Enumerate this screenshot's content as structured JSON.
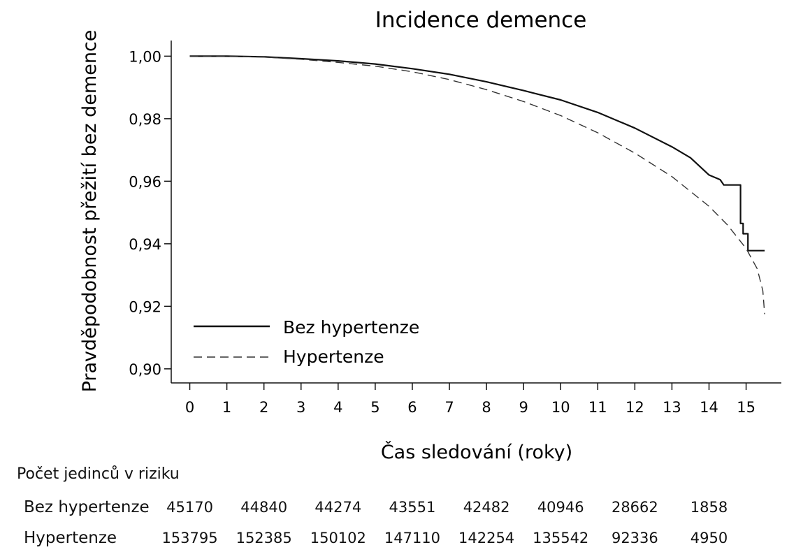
{
  "chart_data": {
    "type": "line",
    "title": "Incidence demence",
    "xlabel": "Čas sledování (roky)",
    "ylabel": "Pravděpodobnost přežití bez demence",
    "xlim": [
      -0.5,
      15.95
    ],
    "ylim": [
      0.8955,
      1.005
    ],
    "x_ticks": [
      "0",
      "1",
      "2",
      "3",
      "4",
      "5",
      "6",
      "7",
      "8",
      "9",
      "10",
      "11",
      "12",
      "13",
      "14",
      "15"
    ],
    "y_ticks": [
      {
        "value": 1.0,
        "label": "1,00"
      },
      {
        "value": 0.98,
        "label": "0,98"
      },
      {
        "value": 0.96,
        "label": "0,96"
      },
      {
        "value": 0.94,
        "label": "0,94"
      },
      {
        "value": 0.92,
        "label": "0,92"
      },
      {
        "value": 0.9,
        "label": "0,90"
      }
    ],
    "grid": false,
    "legend_position": "bottom-left",
    "series": [
      {
        "name": "Bez hypertenze",
        "style": "solid",
        "color": "#111111",
        "points": [
          [
            0,
            1.0
          ],
          [
            1,
            1.0
          ],
          [
            2,
            0.9998
          ],
          [
            3,
            0.9992
          ],
          [
            4,
            0.9985
          ],
          [
            5,
            0.9975
          ],
          [
            6,
            0.996
          ],
          [
            7,
            0.9942
          ],
          [
            8,
            0.9918
          ],
          [
            9,
            0.989
          ],
          [
            10,
            0.986
          ],
          [
            11,
            0.982
          ],
          [
            12,
            0.977
          ],
          [
            13,
            0.971
          ],
          [
            13.5,
            0.9675
          ],
          [
            14,
            0.962
          ],
          [
            14.3,
            0.9605
          ],
          [
            14.4,
            0.9588
          ],
          [
            14.85,
            0.9588
          ],
          [
            14.85,
            0.9465
          ],
          [
            14.92,
            0.9465
          ],
          [
            14.92,
            0.9432
          ],
          [
            15.05,
            0.9432
          ],
          [
            15.05,
            0.9378
          ],
          [
            15.5,
            0.9378
          ]
        ]
      },
      {
        "name": "Hypertenze",
        "style": "dashed",
        "color": "#333333",
        "points": [
          [
            0,
            1.0
          ],
          [
            1,
            1.0
          ],
          [
            2,
            0.9997
          ],
          [
            3,
            0.999
          ],
          [
            4,
            0.998
          ],
          [
            5,
            0.9968
          ],
          [
            6,
            0.995
          ],
          [
            7,
            0.9925
          ],
          [
            8,
            0.9893
          ],
          [
            9,
            0.9855
          ],
          [
            10,
            0.981
          ],
          [
            11,
            0.9755
          ],
          [
            12,
            0.969
          ],
          [
            13,
            0.9615
          ],
          [
            14,
            0.952
          ],
          [
            14.5,
            0.946
          ],
          [
            15,
            0.9385
          ],
          [
            15.3,
            0.932
          ],
          [
            15.45,
            0.925
          ],
          [
            15.5,
            0.9175
          ]
        ]
      }
    ]
  },
  "risk_table": {
    "title": "Počet jedinců v riziku",
    "years": [
      0,
      2,
      4,
      6,
      8,
      10,
      12,
      14
    ],
    "rows": [
      {
        "label": "Bez hypertenze",
        "values": [
          "45170",
          "44840",
          "44274",
          "43551",
          "42482",
          "40946",
          "28662",
          "1858"
        ]
      },
      {
        "label": "Hypertenze",
        "values": [
          "153795",
          "152385",
          "150102",
          "147110",
          "142254",
          "135542",
          "92336",
          "4950"
        ]
      }
    ]
  }
}
